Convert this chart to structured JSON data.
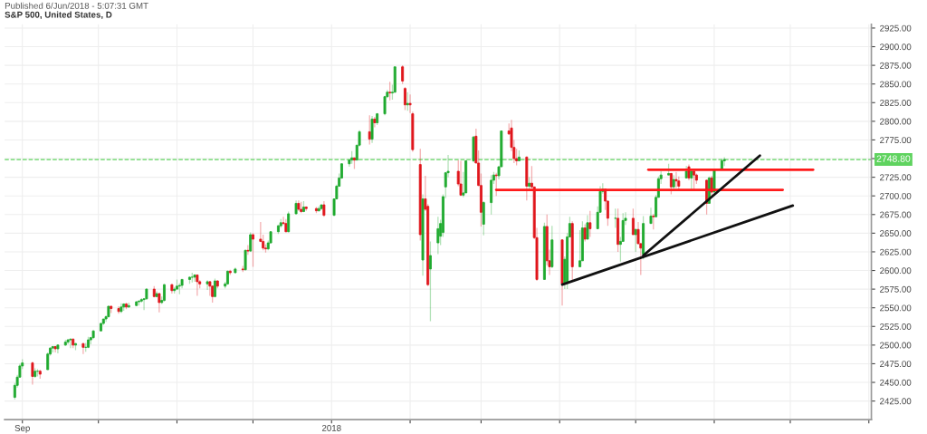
{
  "chart_data": {
    "type": "candlestick",
    "title": "S&P 500, United States, D",
    "annotations": [
      "Published 6/Jun/2018 - 5:07:31 GMT"
    ],
    "x": [
      "2017-08-29",
      "2017-08-30",
      "2017-08-31",
      "2017-09-01",
      "2017-09-05",
      "2017-09-06",
      "2017-09-07",
      "2017-09-08",
      "2017-09-11",
      "2017-09-12",
      "2017-09-13",
      "2017-09-14",
      "2017-09-15",
      "2017-09-18",
      "2017-09-19",
      "2017-09-20",
      "2017-09-21",
      "2017-09-22",
      "2017-09-25",
      "2017-09-26",
      "2017-09-27",
      "2017-09-28",
      "2017-09-29",
      "2017-10-02",
      "2017-10-03",
      "2017-10-04",
      "2017-10-05",
      "2017-10-06",
      "2017-10-09",
      "2017-10-10",
      "2017-10-11",
      "2017-10-12",
      "2017-10-13",
      "2017-10-16",
      "2017-10-17",
      "2017-10-18",
      "2017-10-19",
      "2017-10-20",
      "2017-10-23",
      "2017-10-24",
      "2017-10-25",
      "2017-10-26",
      "2017-10-27",
      "2017-10-30",
      "2017-10-31",
      "2017-11-01",
      "2017-11-02",
      "2017-11-03",
      "2017-11-06",
      "2017-11-07",
      "2017-11-08",
      "2017-11-09",
      "2017-11-10",
      "2017-11-13",
      "2017-11-14",
      "2017-11-15",
      "2017-11-16",
      "2017-11-17",
      "2017-11-20",
      "2017-11-21",
      "2017-11-22",
      "2017-11-24",
      "2017-11-27",
      "2017-11-28",
      "2017-11-29",
      "2017-11-30",
      "2017-12-01",
      "2017-12-04",
      "2017-12-05",
      "2017-12-06",
      "2017-12-07",
      "2017-12-08",
      "2017-12-11",
      "2017-12-12",
      "2017-12-13",
      "2017-12-14",
      "2017-12-15",
      "2017-12-18",
      "2017-12-19",
      "2017-12-20",
      "2017-12-21",
      "2017-12-22",
      "2017-12-26",
      "2017-12-27",
      "2017-12-28",
      "2017-12-29",
      "2018-01-02",
      "2018-01-03",
      "2018-01-04",
      "2018-01-05",
      "2018-01-08",
      "2018-01-09",
      "2018-01-10",
      "2018-01-11",
      "2018-01-12",
      "2018-01-16",
      "2018-01-17",
      "2018-01-18",
      "2018-01-19",
      "2018-01-22",
      "2018-01-23",
      "2018-01-24",
      "2018-01-25",
      "2018-01-26",
      "2018-01-29",
      "2018-01-30",
      "2018-01-31",
      "2018-02-01",
      "2018-02-02",
      "2018-02-05",
      "2018-02-06",
      "2018-02-07",
      "2018-02-08",
      "2018-02-09",
      "2018-02-12",
      "2018-02-13",
      "2018-02-14",
      "2018-02-15",
      "2018-02-16",
      "2018-02-20",
      "2018-02-21",
      "2018-02-22",
      "2018-02-23",
      "2018-02-26",
      "2018-02-27",
      "2018-02-28",
      "2018-03-01",
      "2018-03-02",
      "2018-03-05",
      "2018-03-06",
      "2018-03-07",
      "2018-03-08",
      "2018-03-09",
      "2018-03-12",
      "2018-03-13",
      "2018-03-14",
      "2018-03-15",
      "2018-03-16",
      "2018-03-19",
      "2018-03-20",
      "2018-03-21",
      "2018-03-22",
      "2018-03-23",
      "2018-03-26",
      "2018-03-27",
      "2018-03-28",
      "2018-03-29",
      "2018-04-02",
      "2018-04-03",
      "2018-04-04",
      "2018-04-05",
      "2018-04-06",
      "2018-04-09",
      "2018-04-10",
      "2018-04-11",
      "2018-04-12",
      "2018-04-13",
      "2018-04-16",
      "2018-04-17",
      "2018-04-18",
      "2018-04-19",
      "2018-04-20",
      "2018-04-23",
      "2018-04-24",
      "2018-04-25",
      "2018-04-26",
      "2018-04-27",
      "2018-04-30",
      "2018-05-01",
      "2018-05-02",
      "2018-05-03",
      "2018-05-04",
      "2018-05-07",
      "2018-05-08",
      "2018-05-09",
      "2018-05-10",
      "2018-05-11",
      "2018-05-14",
      "2018-05-15",
      "2018-05-16",
      "2018-05-17",
      "2018-05-18",
      "2018-05-21",
      "2018-05-22",
      "2018-05-23",
      "2018-05-24",
      "2018-05-25",
      "2018-05-29",
      "2018-05-30",
      "2018-05-31",
      "2018-06-01",
      "2018-06-04",
      "2018-06-05"
    ],
    "ohlc": [
      [
        2430,
        2449,
        2427,
        2446
      ],
      [
        2446,
        2460,
        2443,
        2457
      ],
      [
        2457,
        2475,
        2456,
        2472
      ],
      [
        2472,
        2481,
        2468,
        2476
      ],
      [
        2476,
        2478,
        2447,
        2458
      ],
      [
        2458,
        2469,
        2456,
        2465
      ],
      [
        2465,
        2468,
        2458,
        2465
      ],
      [
        2465,
        2467,
        2455,
        2461
      ],
      [
        2467,
        2490,
        2467,
        2488
      ],
      [
        2488,
        2497,
        2486,
        2496
      ],
      [
        2496,
        2499,
        2490,
        2498
      ],
      [
        2498,
        2499,
        2490,
        2495
      ],
      [
        2495,
        2501,
        2489,
        2500
      ],
      [
        2500,
        2507,
        2499,
        2504
      ],
      [
        2504,
        2508,
        2501,
        2507
      ],
      [
        2507,
        2509,
        2496,
        2508
      ],
      [
        2508,
        2509,
        2496,
        2500
      ],
      [
        2500,
        2503,
        2493,
        2502
      ],
      [
        2502,
        2503,
        2488,
        2497
      ],
      [
        2497,
        2503,
        2491,
        2497
      ],
      [
        2497,
        2511,
        2496,
        2507
      ],
      [
        2507,
        2511,
        2501,
        2510
      ],
      [
        2510,
        2520,
        2508,
        2519
      ],
      [
        2519,
        2530,
        2519,
        2529
      ],
      [
        2529,
        2535,
        2527,
        2535
      ],
      [
        2535,
        2540,
        2531,
        2538
      ],
      [
        2538,
        2553,
        2537,
        2552
      ],
      [
        2552,
        2553,
        2543,
        2549
      ],
      [
        2549,
        2552,
        2542,
        2545
      ],
      [
        2545,
        2556,
        2543,
        2551
      ],
      [
        2551,
        2556,
        2546,
        2555
      ],
      [
        2555,
        2557,
        2548,
        2551
      ],
      [
        2551,
        2557,
        2550,
        2553
      ],
      [
        2553,
        2559,
        2552,
        2558
      ],
      [
        2558,
        2560,
        2553,
        2559
      ],
      [
        2559,
        2563,
        2557,
        2561
      ],
      [
        2561,
        2563,
        2547,
        2562
      ],
      [
        2562,
        2576,
        2561,
        2575
      ],
      [
        2575,
        2579,
        2564,
        2565
      ],
      [
        2565,
        2572,
        2564,
        2569
      ],
      [
        2569,
        2570,
        2544,
        2557
      ],
      [
        2557,
        2565,
        2555,
        2560
      ],
      [
        2560,
        2582,
        2558,
        2581
      ],
      [
        2581,
        2582,
        2569,
        2573
      ],
      [
        2573,
        2578,
        2569,
        2575
      ],
      [
        2575,
        2588,
        2574,
        2579
      ],
      [
        2579,
        2583,
        2568,
        2580
      ],
      [
        2580,
        2588,
        2576,
        2588
      ],
      [
        2588,
        2592,
        2582,
        2591
      ],
      [
        2591,
        2597,
        2584,
        2591
      ],
      [
        2591,
        2595,
        2585,
        2594
      ],
      [
        2594,
        2594,
        2566,
        2585
      ],
      [
        2585,
        2587,
        2576,
        2582
      ],
      [
        2582,
        2587,
        2574,
        2585
      ],
      [
        2585,
        2586,
        2566,
        2579
      ],
      [
        2579,
        2580,
        2557,
        2565
      ],
      [
        2565,
        2589,
        2564,
        2586
      ],
      [
        2586,
        2587,
        2576,
        2579
      ],
      [
        2579,
        2585,
        2576,
        2582
      ],
      [
        2582,
        2600,
        2581,
        2599
      ],
      [
        2599,
        2601,
        2594,
        2597
      ],
      [
        2597,
        2604,
        2596,
        2602
      ],
      [
        2602,
        2606,
        2598,
        2601
      ],
      [
        2601,
        2628,
        2600,
        2627
      ],
      [
        2627,
        2634,
        2621,
        2626
      ],
      [
        2626,
        2651,
        2625,
        2648
      ],
      [
        2648,
        2650,
        2605,
        2642
      ],
      [
        2642,
        2665,
        2638,
        2639
      ],
      [
        2639,
        2648,
        2627,
        2630
      ],
      [
        2630,
        2635,
        2624,
        2629
      ],
      [
        2629,
        2640,
        2627,
        2637
      ],
      [
        2637,
        2652,
        2636,
        2652
      ],
      [
        2652,
        2661,
        2649,
        2660
      ],
      [
        2660,
        2669,
        2657,
        2664
      ],
      [
        2664,
        2672,
        2661,
        2663
      ],
      [
        2663,
        2669,
        2651,
        2652
      ],
      [
        2652,
        2679,
        2651,
        2676
      ],
      [
        2676,
        2694,
        2675,
        2690
      ],
      [
        2690,
        2694,
        2680,
        2682
      ],
      [
        2682,
        2692,
        2677,
        2679
      ],
      [
        2679,
        2693,
        2678,
        2685
      ],
      [
        2685,
        2686,
        2680,
        2683
      ],
      [
        2683,
        2685,
        2677,
        2680
      ],
      [
        2680,
        2686,
        2679,
        2683
      ],
      [
        2683,
        2688,
        2681,
        2688
      ],
      [
        2688,
        2693,
        2672,
        2674
      ],
      [
        2674,
        2696,
        2673,
        2696
      ],
      [
        2696,
        2715,
        2695,
        2713
      ],
      [
        2713,
        2730,
        2712,
        2724
      ],
      [
        2724,
        2744,
        2723,
        2743
      ],
      [
        2743,
        2749,
        2739,
        2748
      ],
      [
        2748,
        2760,
        2743,
        2751
      ],
      [
        2751,
        2751,
        2736,
        2748
      ],
      [
        2748,
        2768,
        2748,
        2768
      ],
      [
        2768,
        2788,
        2766,
        2786
      ],
      [
        2786,
        2808,
        2769,
        2776
      ],
      [
        2776,
        2807,
        2771,
        2803
      ],
      [
        2803,
        2806,
        2792,
        2798
      ],
      [
        2798,
        2811,
        2795,
        2810
      ],
      [
        2810,
        2834,
        2808,
        2833
      ],
      [
        2833,
        2842,
        2831,
        2839
      ],
      [
        2839,
        2853,
        2828,
        2838
      ],
      [
        2838,
        2849,
        2829,
        2839
      ],
      [
        2839,
        2873,
        2838,
        2873
      ],
      [
        2873,
        2875,
        2850,
        2854
      ],
      [
        2844,
        2846,
        2815,
        2822
      ],
      [
        2822,
        2839,
        2814,
        2824
      ],
      [
        2824,
        2836,
        2811,
        2822
      ],
      [
        2810,
        2813,
        2759,
        2762
      ],
      [
        2742,
        2763,
        2640,
        2648
      ],
      [
        2614,
        2702,
        2593,
        2696
      ],
      [
        2696,
        2727,
        2680,
        2682
      ],
      [
        2686,
        2689,
        2579,
        2581
      ],
      [
        2602,
        2639,
        2532,
        2620
      ],
      [
        2637,
        2672,
        2622,
        2656
      ],
      [
        2646,
        2668,
        2634,
        2663
      ],
      [
        2651,
        2702,
        2645,
        2699
      ],
      [
        2712,
        2732,
        2697,
        2731
      ],
      [
        2731,
        2755,
        2725,
        2733
      ],
      [
        2733,
        2748,
        2713,
        2716
      ],
      [
        2716,
        2747,
        2700,
        2701
      ],
      [
        2701,
        2732,
        2698,
        2704
      ],
      [
        2704,
        2748,
        2704,
        2747
      ],
      [
        2747,
        2780,
        2745,
        2779
      ],
      [
        2780,
        2790,
        2744,
        2744
      ],
      [
        2744,
        2761,
        2713,
        2714
      ],
      [
        2714,
        2730,
        2659,
        2678
      ],
      [
        2662,
        2693,
        2647,
        2691
      ],
      [
        2691,
        2728,
        2675,
        2721
      ],
      [
        2721,
        2732,
        2716,
        2728
      ],
      [
        2728,
        2731,
        2700,
        2727
      ],
      [
        2727,
        2740,
        2722,
        2739
      ],
      [
        2739,
        2787,
        2739,
        2787
      ],
      [
        2787,
        2797,
        2782,
        2783
      ],
      [
        2791,
        2802,
        2760,
        2765
      ],
      [
        2765,
        2775,
        2744,
        2750
      ],
      [
        2750,
        2763,
        2741,
        2747
      ],
      [
        2747,
        2761,
        2747,
        2752
      ],
      [
        2752,
        2753,
        2694,
        2713
      ],
      [
        2713,
        2725,
        2709,
        2717
      ],
      [
        2717,
        2740,
        2710,
        2712
      ],
      [
        2712,
        2712,
        2642,
        2644
      ],
      [
        2644,
        2657,
        2586,
        2588
      ],
      [
        2588,
        2664,
        2588,
        2659
      ],
      [
        2659,
        2675,
        2607,
        2613
      ],
      [
        2613,
        2628,
        2594,
        2605
      ],
      [
        2605,
        2660,
        2603,
        2641
      ],
      [
        2641,
        2642,
        2553,
        2582
      ],
      [
        2582,
        2619,
        2575,
        2615
      ],
      [
        2584,
        2650,
        2575,
        2645
      ],
      [
        2645,
        2672,
        2645,
        2663
      ],
      [
        2663,
        2666,
        2586,
        2605
      ],
      [
        2605,
        2654,
        2605,
        2613
      ],
      [
        2613,
        2666,
        2613,
        2657
      ],
      [
        2657,
        2662,
        2639,
        2642
      ],
      [
        2642,
        2674,
        2642,
        2664
      ],
      [
        2664,
        2680,
        2645,
        2656
      ],
      [
        2656,
        2686,
        2656,
        2678
      ],
      [
        2678,
        2713,
        2678,
        2706
      ],
      [
        2706,
        2717,
        2703,
        2709
      ],
      [
        2709,
        2710,
        2681,
        2693
      ],
      [
        2693,
        2694,
        2660,
        2670
      ],
      [
        2670,
        2683,
        2657,
        2670
      ],
      [
        2670,
        2683,
        2625,
        2635
      ],
      [
        2635,
        2645,
        2612,
        2639
      ],
      [
        2639,
        2677,
        2639,
        2667
      ],
      [
        2667,
        2678,
        2661,
        2670
      ],
      [
        2670,
        2683,
        2648,
        2648
      ],
      [
        2648,
        2656,
        2625,
        2655
      ],
      [
        2655,
        2665,
        2635,
        2636
      ],
      [
        2636,
        2637,
        2594,
        2630
      ],
      [
        2622,
        2673,
        2615,
        2663
      ],
      [
        2663,
        2684,
        2663,
        2673
      ],
      [
        2673,
        2676,
        2655,
        2672
      ],
      [
        2672,
        2701,
        2671,
        2698
      ],
      [
        2698,
        2726,
        2698,
        2723
      ],
      [
        2723,
        2733,
        2716,
        2728
      ],
      [
        2728,
        2743,
        2728,
        2730
      ],
      [
        2730,
        2731,
        2702,
        2712
      ],
      [
        2712,
        2728,
        2708,
        2722
      ],
      [
        2722,
        2732,
        2711,
        2720
      ],
      [
        2720,
        2726,
        2708,
        2713
      ],
      [
        2724,
        2740,
        2724,
        2733
      ],
      [
        2739,
        2742,
        2721,
        2724
      ],
      [
        2724,
        2734,
        2707,
        2733
      ],
      [
        2733,
        2734,
        2707,
        2728
      ],
      [
        2728,
        2730,
        2716,
        2721
      ],
      [
        2721,
        2722,
        2675,
        2690
      ],
      [
        2690,
        2726,
        2690,
        2724
      ],
      [
        2724,
        2727,
        2700,
        2705
      ],
      [
        2705,
        2736,
        2705,
        2735
      ],
      [
        2735,
        2749,
        2735,
        2747
      ],
      [
        2747,
        2752,
        2740,
        2748.8
      ]
    ],
    "colors": [
      "#1faa2f",
      "#1faa2f",
      "#1faa2f",
      "#1faa2f",
      "#e0161c",
      "#1faa2f",
      "#1faa2f",
      "#e0161c",
      "#1faa2f",
      "#1faa2f",
      "#1faa2f",
      "#e0161c",
      "#1faa2f",
      "#1faa2f",
      "#1faa2f",
      "#1faa2f",
      "#e0161c",
      "#1faa2f",
      "#e0161c",
      "#1faa2f",
      "#1faa2f",
      "#1faa2f",
      "#1faa2f",
      "#1faa2f",
      "#1faa2f",
      "#1faa2f",
      "#1faa2f",
      "#e0161c",
      "#e0161c",
      "#1faa2f",
      "#1faa2f",
      "#e0161c",
      "#1faa2f",
      "#1faa2f",
      "#1faa2f",
      "#1faa2f",
      "#1faa2f",
      "#1faa2f",
      "#e0161c",
      "#1faa2f",
      "#e0161c",
      "#1faa2f",
      "#1faa2f",
      "#e0161c",
      "#1faa2f",
      "#1faa2f",
      "#1faa2f",
      "#1faa2f",
      "#1faa2f",
      "#1faa2f",
      "#1faa2f",
      "#e0161c",
      "#e0161c",
      "#1faa2f",
      "#e0161c",
      "#e0161c",
      "#1faa2f",
      "#e0161c",
      "#1faa2f",
      "#1faa2f",
      "#e0161c",
      "#1faa2f",
      "#e0161c",
      "#1faa2f",
      "#e0161c",
      "#1faa2f",
      "#e0161c",
      "#e0161c",
      "#e0161c",
      "#e0161c",
      "#1faa2f",
      "#1faa2f",
      "#1faa2f",
      "#1faa2f",
      "#e0161c",
      "#e0161c",
      "#1faa2f",
      "#1faa2f",
      "#e0161c",
      "#e0161c",
      "#1faa2f",
      "#e0161c",
      "#e0161c",
      "#1faa2f",
      "#1faa2f",
      "#e0161c",
      "#1faa2f",
      "#1faa2f",
      "#1faa2f",
      "#1faa2f",
      "#1faa2f",
      "#1faa2f",
      "#e0161c",
      "#1faa2f",
      "#1faa2f",
      "#e0161c",
      "#1faa2f",
      "#e0161c",
      "#1faa2f",
      "#1faa2f",
      "#1faa2f",
      "#e0161c",
      "#1faa2f",
      "#1faa2f",
      "#e0161c",
      "#e0161c",
      "#1faa2f",
      "#e0161c",
      "#e0161c",
      "#e0161c",
      "#1faa2f",
      "#e0161c",
      "#e0161c",
      "#1faa2f",
      "#1faa2f",
      "#1faa2f",
      "#1faa2f",
      "#1faa2f",
      "#1faa2f",
      "#e0161c",
      "#e0161c",
      "#1faa2f",
      "#1faa2f",
      "#1faa2f",
      "#e0161c",
      "#e0161c",
      "#e0161c",
      "#1faa2f",
      "#1faa2f",
      "#1faa2f",
      "#e0161c",
      "#1faa2f",
      "#1faa2f",
      "#e0161c",
      "#e0161c",
      "#e0161c",
      "#e0161c",
      "#1faa2f",
      "#e0161c",
      "#1faa2f",
      "#e0161c",
      "#e0161c",
      "#e0161c",
      "#1faa2f",
      "#e0161c",
      "#e0161c",
      "#1faa2f",
      "#e0161c",
      "#1faa2f",
      "#1faa2f",
      "#1faa2f",
      "#e0161c",
      "#1faa2f",
      "#1faa2f",
      "#e0161c",
      "#1faa2f",
      "#e0161c",
      "#1faa2f",
      "#1faa2f",
      "#1faa2f",
      "#e0161c",
      "#e0161c",
      "#1faa2f",
      "#e0161c",
      "#1faa2f",
      "#1faa2f",
      "#1faa2f",
      "#e0161c",
      "#1faa2f",
      "#e0161c",
      "#e0161c",
      "#1faa2f",
      "#1faa2f",
      "#e0161c",
      "#1faa2f",
      "#1faa2f",
      "#1faa2f",
      "#1faa2f",
      "#e0161c",
      "#1faa2f",
      "#e0161c",
      "#e0161c",
      "#1faa2f",
      "#e0161c",
      "#1faa2f",
      "#e0161c",
      "#e0161c",
      "#e0161c",
      "#1faa2f",
      "#e0161c",
      "#1faa2f",
      "#1faa2f",
      "#1faa2f"
    ],
    "series": [
      {
        "type": "line",
        "color": "#ff1a1a",
        "x": [
          "2018-05-06",
          "2018-07-10"
        ],
        "values": [
          2735,
          2735
        ]
      },
      {
        "type": "line",
        "color": "#ff1a1a",
        "x": [
          "2018-03-07",
          "2018-06-28"
        ],
        "values": [
          2708,
          2708
        ]
      },
      {
        "type": "line",
        "color": "#111111",
        "x": [
          "2018-04-02",
          "2018-07-02"
        ],
        "values": [
          2581,
          2687
        ]
      },
      {
        "type": "line",
        "color": "#111111",
        "x": [
          "2018-05-04",
          "2018-06-19"
        ],
        "values": [
          2620,
          2754
        ]
      }
    ],
    "ref_lines": [
      {
        "axis": "y",
        "value": 2748.8,
        "label": "2748.80",
        "color": "#5fd35f",
        "line_style": "dashed"
      }
    ],
    "xlim": [
      "2017-08-25",
      "2018-08-02"
    ],
    "xticks": [
      {
        "value": "2017-09-01",
        "label": "Sep"
      },
      {
        "value": "2017-10-01",
        "label": null
      },
      {
        "value": "2017-11-01",
        "label": null
      },
      {
        "value": "2017-12-01",
        "label": null
      },
      {
        "value": "2018-01-01",
        "label": "2018"
      },
      {
        "value": "2018-02-01",
        "label": null
      },
      {
        "value": "2018-03-01",
        "label": null
      },
      {
        "value": "2018-04-01",
        "label": null
      },
      {
        "value": "2018-05-01",
        "label": null
      },
      {
        "value": "2018-06-01",
        "label": null
      },
      {
        "value": "2018-07-01",
        "label": null
      },
      {
        "value": "2018-08-01",
        "label": null
      }
    ],
    "ylim": [
      2400,
      2930
    ],
    "yticks": [
      {
        "value": 2425,
        "label": "2425.00"
      },
      {
        "value": 2450,
        "label": "2450.00"
      },
      {
        "value": 2475,
        "label": "2475.00"
      },
      {
        "value": 2500,
        "label": "2500.00"
      },
      {
        "value": 2525,
        "label": "2525.00"
      },
      {
        "value": 2550,
        "label": "2550.00"
      },
      {
        "value": 2575,
        "label": "2575.00"
      },
      {
        "value": 2600,
        "label": "2600.00"
      },
      {
        "value": 2625,
        "label": "2625.00"
      },
      {
        "value": 2650,
        "label": "2650.00"
      },
      {
        "value": 2675,
        "label": "2675.00"
      },
      {
        "value": 2700,
        "label": "2700.00"
      },
      {
        "value": 2725,
        "label": "2725.00"
      },
      {
        "value": 2750,
        "label": null
      },
      {
        "value": 2775,
        "label": "2775.00"
      },
      {
        "value": 2800,
        "label": "2800.00"
      },
      {
        "value": 2825,
        "label": "2825.00"
      },
      {
        "value": 2850,
        "label": "2850.00"
      },
      {
        "value": 2875,
        "label": "2875.00"
      },
      {
        "value": 2900,
        "label": "2900.00"
      },
      {
        "value": 2925,
        "label": "2925.00"
      }
    ],
    "grid": true
  }
}
